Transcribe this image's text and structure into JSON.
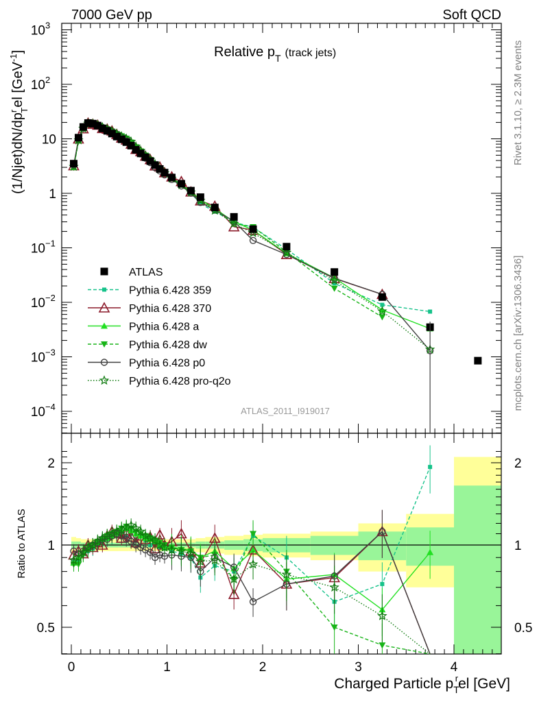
{
  "header": {
    "left": "7000 GeV pp",
    "right": "Soft QCD",
    "title_main": "Relative p",
    "title_sub": "T",
    "title_suffix": "(track jets)"
  },
  "side_labels": {
    "top": "Rivet 3.1.10, ≥ 2.3M events",
    "bottom": "mcplots.cern.ch [arXiv:1306.3436]"
  },
  "analysis_id": "ATLAS_2011_I919017",
  "colors": {
    "atlas": "#000000",
    "p359": "#16c28a",
    "p370": "#8b1a2a",
    "pa": "#22e022",
    "pdw": "#18b418",
    "pp0": "#404040",
    "pq2o": "#0e7a0e",
    "band_yellow": "#ffff99",
    "band_green": "#99f599"
  },
  "chart_data": {
    "type": "line",
    "xlabel": "Charged Particle p",
    "xlabel_sub": "T",
    "xlabel_sup": "r",
    "xlabel_suffix": "el [GeV]",
    "ylabel": "(1/Njet)dN/dp",
    "ylabel_sub": "T",
    "ylabel_sup": "r",
    "ylabel_suffix": "el [GeV",
    "ylabel_unit_sup": "-1",
    "ylabel_close": "]",
    "ratio_ylabel": "Ratio to ATLAS",
    "xlim": [
      -0.1,
      4.5
    ],
    "ylim": [
      3e-05,
      1500
    ],
    "ratio_ylim": [
      0.36,
      2.3
    ],
    "yscale": "log",
    "legend_position": "middle-left",
    "x_ticks": [
      "0",
      "1",
      "2",
      "3",
      "4"
    ],
    "y_ticks": [
      "10^-4",
      "10^-3",
      "10^-2",
      "10^-1",
      "1",
      "10",
      "10^2",
      "10^3"
    ],
    "ratio_ticks": [
      "0.5",
      "1",
      "2"
    ],
    "atlas": {
      "name": "ATLAS",
      "x": [
        0.025,
        0.075,
        0.125,
        0.175,
        0.225,
        0.275,
        0.325,
        0.375,
        0.425,
        0.475,
        0.525,
        0.575,
        0.625,
        0.675,
        0.725,
        0.775,
        0.825,
        0.875,
        0.925,
        0.975,
        1.05,
        1.15,
        1.25,
        1.35,
        1.5,
        1.7,
        1.9,
        2.25,
        2.75,
        3.25,
        3.75,
        4.25
      ],
      "y": [
        3.5,
        10.5,
        16.5,
        19.5,
        19,
        17.5,
        15.5,
        14,
        12.5,
        11,
        9.8,
        8.7,
        7.5,
        6.3,
        5.4,
        4.6,
        3.9,
        3.3,
        2.8,
        2.4,
        1.95,
        1.5,
        1.12,
        0.85,
        0.55,
        0.37,
        0.22,
        0.105,
        0.036,
        0.0125,
        0.0035,
        0.00085
      ],
      "ratio_band_x": [
        0.0,
        0.05,
        0.1,
        0.2,
        0.3,
        0.4,
        0.5,
        0.6,
        0.7,
        0.8,
        0.9,
        1.0,
        1.1,
        1.2,
        1.3,
        1.4,
        1.6,
        1.8,
        2.0,
        2.5,
        3.0,
        3.5,
        4.0,
        4.5
      ],
      "ratio_band_yellow": [
        0.07,
        0.06,
        0.05,
        0.05,
        0.05,
        0.05,
        0.05,
        0.05,
        0.05,
        0.05,
        0.05,
        0.05,
        0.05,
        0.05,
        0.06,
        0.07,
        0.08,
        0.09,
        0.1,
        0.12,
        0.2,
        0.3,
        1.1
      ],
      "ratio_band_green": [
        0.03,
        0.03,
        0.02,
        0.02,
        0.02,
        0.02,
        0.02,
        0.02,
        0.02,
        0.02,
        0.02,
        0.02,
        0.02,
        0.02,
        0.03,
        0.03,
        0.04,
        0.05,
        0.06,
        0.08,
        0.12,
        0.16,
        0.65
      ]
    },
    "series": [
      {
        "name": "Pythia 6.428 359",
        "key": "p359",
        "style": "dash",
        "marker": "square-small",
        "x": [
          0.025,
          0.075,
          0.125,
          0.175,
          0.225,
          0.275,
          0.325,
          0.375,
          0.425,
          0.475,
          0.525,
          0.575,
          0.625,
          0.675,
          0.725,
          0.775,
          0.825,
          0.875,
          0.925,
          0.975,
          1.05,
          1.15,
          1.25,
          1.35,
          1.5,
          1.7,
          1.9,
          2.25,
          2.75,
          3.25,
          3.75
        ],
        "ratio": [
          0.88,
          0.87,
          0.93,
          0.95,
          0.97,
          1.0,
          1.02,
          1.05,
          1.07,
          1.09,
          1.1,
          1.08,
          1.1,
          1.05,
          1.08,
          1.04,
          1.0,
          1.02,
          0.98,
          0.97,
          0.95,
          0.93,
          0.9,
          0.76,
          0.84,
          0.8,
          1.08,
          0.9,
          0.62,
          0.72,
          1.93
        ]
      },
      {
        "name": "Pythia 6.428 370",
        "key": "p370",
        "style": "solid",
        "marker": "triangle-open",
        "x": [
          0.025,
          0.075,
          0.125,
          0.175,
          0.225,
          0.275,
          0.325,
          0.375,
          0.425,
          0.475,
          0.525,
          0.575,
          0.625,
          0.675,
          0.725,
          0.775,
          0.825,
          0.875,
          0.925,
          0.975,
          1.05,
          1.15,
          1.25,
          1.35,
          1.5,
          1.7,
          1.9,
          2.25,
          2.75,
          3.25,
          3.75
        ],
        "ratio": [
          0.92,
          0.95,
          0.93,
          1.0,
          0.98,
          1.02,
          1.0,
          1.08,
          1.12,
          1.1,
          1.06,
          1.1,
          1.07,
          1.02,
          1.08,
          1.05,
          1.07,
          0.97,
          1.09,
          1.0,
          1.03,
          1.1,
          0.95,
          0.86,
          1.06,
          0.66,
          0.96,
          0.72,
          0.76,
          1.12,
          0.0
        ]
      },
      {
        "name": "Pythia 6.428 a",
        "key": "pa",
        "style": "solid",
        "marker": "triangle-filled",
        "x": [
          0.025,
          0.075,
          0.125,
          0.175,
          0.225,
          0.275,
          0.325,
          0.375,
          0.425,
          0.475,
          0.525,
          0.575,
          0.625,
          0.675,
          0.725,
          0.775,
          0.825,
          0.875,
          0.925,
          0.975,
          1.05,
          1.15,
          1.25,
          1.35,
          1.5,
          1.7,
          1.9,
          2.25,
          2.75,
          3.25,
          3.75
        ],
        "ratio": [
          0.86,
          0.9,
          0.95,
          0.97,
          1.0,
          1.02,
          1.05,
          1.06,
          1.08,
          1.1,
          1.12,
          1.15,
          1.13,
          1.1,
          1.08,
          1.06,
          1.05,
          1.03,
          1.0,
          0.98,
          0.98,
          0.97,
          0.96,
          0.9,
          0.95,
          0.82,
          0.96,
          0.75,
          0.78,
          0.58,
          0.94
        ]
      },
      {
        "name": "Pythia 6.428 dw",
        "key": "pdw",
        "style": "dash",
        "marker": "triangle-down-filled",
        "x": [
          0.025,
          0.075,
          0.125,
          0.175,
          0.225,
          0.275,
          0.325,
          0.375,
          0.425,
          0.475,
          0.525,
          0.575,
          0.625,
          0.675,
          0.725,
          0.775,
          0.825,
          0.875,
          0.925,
          0.975,
          1.05,
          1.15,
          1.25,
          1.35,
          1.5,
          1.7,
          1.9,
          2.25,
          2.75,
          3.25,
          3.75
        ],
        "ratio": [
          0.85,
          0.85,
          0.92,
          0.96,
          1.0,
          1.03,
          1.05,
          1.08,
          1.1,
          1.12,
          1.15,
          1.17,
          1.15,
          1.12,
          1.1,
          1.08,
          1.06,
          1.04,
          1.02,
          1.0,
          0.98,
          0.96,
          0.95,
          0.9,
          0.92,
          0.75,
          1.1,
          0.8,
          0.5,
          0.43,
          0.0
        ]
      },
      {
        "name": "Pythia 6.428 p0",
        "key": "pp0",
        "style": "solid",
        "marker": "circle-open",
        "x": [
          0.025,
          0.075,
          0.125,
          0.175,
          0.225,
          0.275,
          0.325,
          0.375,
          0.425,
          0.475,
          0.525,
          0.575,
          0.625,
          0.675,
          0.725,
          0.775,
          0.825,
          0.875,
          0.925,
          0.975,
          1.05,
          1.15,
          1.25,
          1.35,
          1.5,
          1.7,
          1.9,
          2.25,
          2.75,
          3.25,
          3.75
        ],
        "ratio": [
          0.95,
          0.93,
          0.95,
          0.98,
          1.0,
          1.02,
          1.05,
          1.05,
          1.08,
          1.1,
          1.08,
          1.05,
          1.03,
          1.0,
          0.98,
          0.96,
          0.94,
          0.9,
          0.92,
          0.91,
          0.92,
          0.91,
          0.9,
          0.8,
          0.9,
          0.83,
          0.62,
          0.72,
          0.77,
          1.12,
          0.37
        ]
      },
      {
        "name": "Pythia 6.428 pro-q2o",
        "key": "pq2o",
        "style": "dot",
        "marker": "star-open",
        "x": [
          0.025,
          0.075,
          0.125,
          0.175,
          0.225,
          0.275,
          0.325,
          0.375,
          0.425,
          0.475,
          0.525,
          0.575,
          0.625,
          0.675,
          0.725,
          0.775,
          0.825,
          0.875,
          0.925,
          0.975,
          1.05,
          1.15,
          1.25,
          1.35,
          1.5,
          1.7,
          1.9,
          2.25,
          2.75,
          3.25,
          3.75
        ],
        "ratio": [
          0.88,
          0.9,
          0.94,
          0.98,
          1.0,
          1.03,
          1.06,
          1.08,
          1.1,
          1.12,
          1.14,
          1.16,
          1.18,
          1.15,
          1.12,
          1.08,
          1.06,
          1.04,
          1.0,
          0.98,
          0.96,
          0.95,
          0.93,
          0.87,
          0.88,
          0.75,
          0.85,
          0.78,
          0.7,
          0.55,
          0.39
        ]
      }
    ]
  }
}
